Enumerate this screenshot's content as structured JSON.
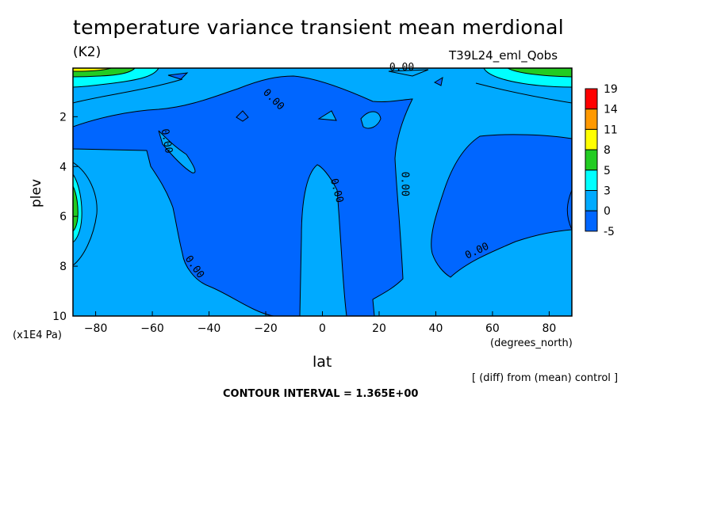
{
  "chart_data": {
    "type": "contour",
    "title": "temperature variance transient mean merdional",
    "units": "(K2)",
    "run_label": "T39L24_eml_Qobs",
    "xlabel": "lat",
    "x_units": "(degrees_north)",
    "ylabel": "plev",
    "y_units": "(x1E4 Pa)",
    "x_ticks": [
      -80,
      -60,
      -40,
      -20,
      0,
      20,
      40,
      60,
      80
    ],
    "y_ticks": [
      2,
      4,
      6,
      8,
      10
    ],
    "xlim": [
      -88,
      88
    ],
    "ylim": [
      0.05,
      10
    ],
    "y_inverted": true,
    "colorbar": {
      "labels": [
        "19",
        "14",
        "11",
        "8",
        "5",
        "3",
        "0",
        "-5"
      ],
      "colors": [
        "#ff0000",
        "#ff9900",
        "#ffff00",
        "#22cc22",
        "#00ffff",
        "#00aaff",
        "#0066ff"
      ]
    },
    "contour_labels": [
      {
        "text": "0.00",
        "lat": 28,
        "plev": 0.15,
        "angle": 0
      },
      {
        "text": "0.00",
        "lat": -18,
        "plev": 1.4,
        "angle": 45
      },
      {
        "text": "0.00",
        "lat": -56,
        "plev": 3.0,
        "angle": 80
      },
      {
        "text": "0.00",
        "lat": 4,
        "plev": 5.0,
        "angle": 75
      },
      {
        "text": "0.00",
        "lat": 28,
        "plev": 4.7,
        "angle": 90
      },
      {
        "text": "0.00",
        "lat": -46,
        "plev": 8.1,
        "angle": 55
      },
      {
        "text": "0.00",
        "lat": 55,
        "plev": 7.5,
        "angle": -25
      }
    ],
    "grid": false,
    "legend": "right"
  },
  "footer": {
    "diff_note": "[ (diff) from (mean) control ]",
    "contour_interval": "CONTOUR INTERVAL = 1.365E+00"
  }
}
